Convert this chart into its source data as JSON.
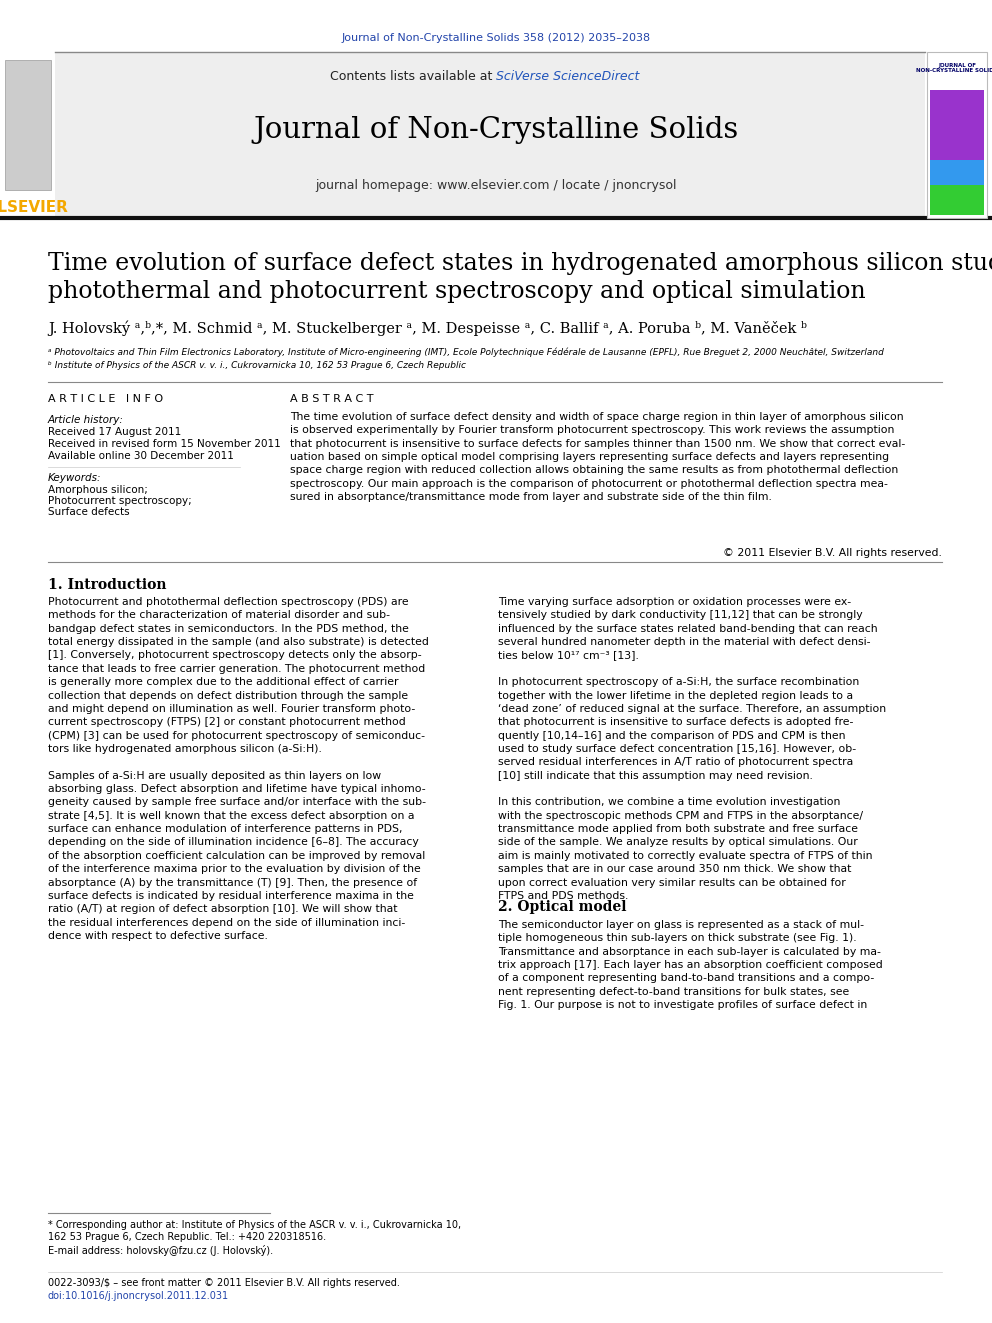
{
  "page_width": 9.92,
  "page_height": 13.23,
  "bg_color": "#ffffff",
  "top_journal_line": "Journal of Non-Crystalline Solids 358 (2012) 2035–2038",
  "top_journal_color": "#2244aa",
  "header_bg": "#eeeeee",
  "header_sciverse_color": "#2255bb",
  "header_journal_name": "Journal of Non-Crystalline Solids",
  "header_homepage": "journal homepage: www.elsevier.com / locate / jnoncrysol",
  "elsevier_color": "#f4a800",
  "paper_title": "Time evolution of surface defect states in hydrogenated amorphous silicon studied by\nphotothermal and photocurrent spectroscopy and optical simulation",
  "affil_a": "ᵃ Photovoltaics and Thin Film Electronics Laboratory, Institute of Micro-engineering (IMT), Ecole Polytechnique Fédérale de Lausanne (EPFL), Rue Breguet 2, 2000 Neuchâtel, Switzerland",
  "affil_b": "ᵇ Institute of Physics of the ASCR v. v. i., Cukrovarnicka 10, 162 53 Prague 6, Czech Republic",
  "article_info_header": "A R T I C L E   I N F O",
  "abstract_header": "A B S T R A C T",
  "article_history_label": "Article history:",
  "received_1": "Received 17 August 2011",
  "received_2": "Received in revised form 15 November 2011",
  "available": "Available online 30 December 2011",
  "keywords_label": "Keywords:",
  "keyword1": "Amorphous silicon;",
  "keyword2": "Photocurrent spectroscopy;",
  "keyword3": "Surface defects",
  "abstract_text": "The time evolution of surface defect density and width of space charge region in thin layer of amorphous silicon\nis observed experimentally by Fourier transform photocurrent spectroscopy. This work reviews the assumption\nthat photocurrent is insensitive to surface defects for samples thinner than 1500 nm. We show that correct eval-\nuation based on simple optical model comprising layers representing surface defects and layers representing\nspace charge region with reduced collection allows obtaining the same results as from photothermal deflection\nspectroscopy. Our main approach is the comparison of photocurrent or photothermal deflection spectra mea-\nsured in absorptance/transmittance mode from layer and substrate side of the thin film.",
  "copyright_text": "© 2011 Elsevier B.V. All rights reserved.",
  "section1_title": "1. Introduction",
  "intro_col1": "Photocurrent and photothermal deflection spectroscopy (PDS) are\nmethods for the characterization of material disorder and sub-\nbandgap defect states in semiconductors. In the PDS method, the\ntotal energy dissipated in the sample (and also substrate) is detected\n[1]. Conversely, photocurrent spectroscopy detects only the absorp-\ntance that leads to free carrier generation. The photocurrent method\nis generally more complex due to the additional effect of carrier\ncollection that depends on defect distribution through the sample\nand might depend on illumination as well. Fourier transform photo-\ncurrent spectroscopy (FTPS) [2] or constant photocurrent method\n(CPM) [3] can be used for photocurrent spectroscopy of semiconduc-\ntors like hydrogenated amorphous silicon (a-Si:H).\n\nSamples of a-Si:H are usually deposited as thin layers on low\nabsorbing glass. Defect absorption and lifetime have typical inhomo-\ngeneity caused by sample free surface and/or interface with the sub-\nstrate [4,5]. It is well known that the excess defect absorption on a\nsurface can enhance modulation of interference patterns in PDS,\ndepending on the side of illumination incidence [6–8]. The accuracy\nof the absorption coefficient calculation can be improved by removal\nof the interference maxima prior to the evaluation by division of the\nabsorptance (A) by the transmittance (T) [9]. Then, the presence of\nsurface defects is indicated by residual interference maxima in the\nratio (A/T) at region of defect absorption [10]. We will show that\nthe residual interferences depend on the side of illumination inci-\ndence with respect to defective surface.",
  "intro_col2": "Time varying surface adsorption or oxidation processes were ex-\ntensively studied by dark conductivity [11,12] that can be strongly\ninfluenced by the surface states related band-bending that can reach\nseveral hundred nanometer depth in the material with defect densi-\nties below 10¹⁷ cm⁻³ [13].\n\nIn photocurrent spectroscopy of a-Si:H, the surface recombination\ntogether with the lower lifetime in the depleted region leads to a\n‘dead zone’ of reduced signal at the surface. Therefore, an assumption\nthat photocurrent is insensitive to surface defects is adopted fre-\nquently [10,14–16] and the comparison of PDS and CPM is then\nused to study surface defect concentration [15,16]. However, ob-\nserved residual interferences in A/T ratio of photocurrent spectra\n[10] still indicate that this assumption may need revision.\n\nIn this contribution, we combine a time evolution investigation\nwith the spectroscopic methods CPM and FTPS in the absorptance/\ntransmittance mode applied from both substrate and free surface\nside of the sample. We analyze results by optical simulations. Our\naim is mainly motivated to correctly evaluate spectra of FTPS of thin\nsamples that are in our case around 350 nm thick. We show that\nupon correct evaluation very similar results can be obtained for\nFTPS and PDS methods.",
  "section2_title": "2. Optical model",
  "optical_model_text": "The semiconductor layer on glass is represented as a stack of mul-\ntiple homogeneous thin sub-layers on thick substrate (see Fig. 1).\nTransmittance and absorptance in each sub-layer is calculated by ma-\ntrix approach [17]. Each layer has an absorption coefficient composed\nof a component representing band-to-band transitions and a compo-\nnent representing defect-to-band transitions for bulk states, see\nFig. 1. Our purpose is not to investigate profiles of surface defect in",
  "footnote_star": "* Corresponding author at: Institute of Physics of the ASCR v. v. i., Cukrovarnicka 10,\n162 53 Prague 6, Czech Republic. Tel.: +420 220318516.",
  "footnote_email": "E-mail address: holovsky@fzu.cz (J. Holovský).",
  "footer_issn": "0022-3093/$ – see front matter © 2011 Elsevier B.V. All rights reserved.",
  "footer_doi": "doi:10.1016/j.jnoncrysol.2011.12.031",
  "ref_color": "#2244aa",
  "text_color": "#000000"
}
